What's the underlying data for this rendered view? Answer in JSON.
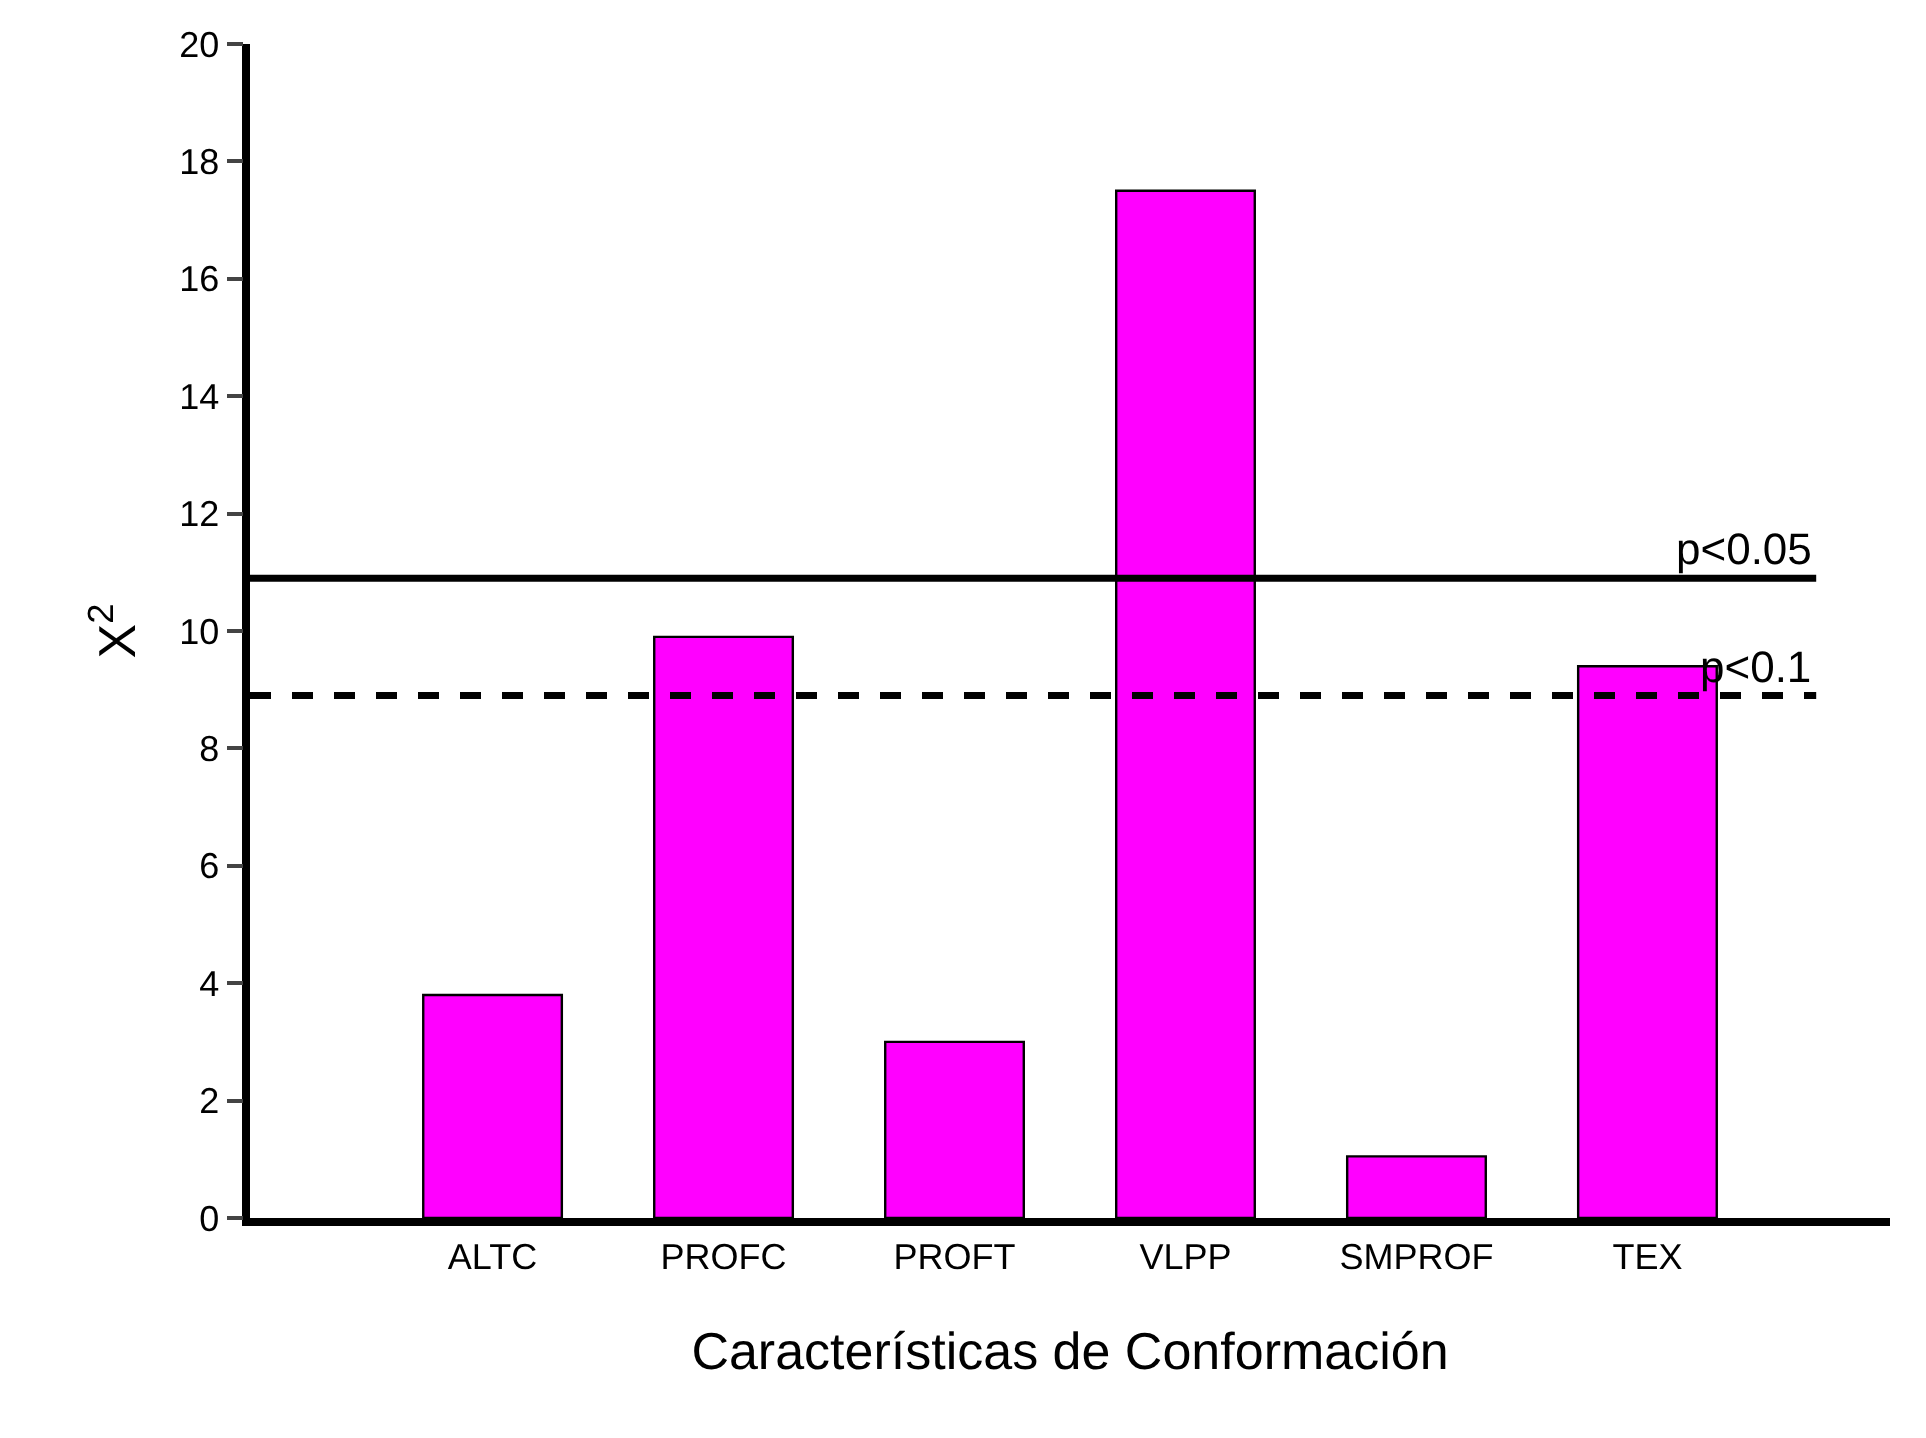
{
  "chart_data": {
    "type": "bar",
    "xlabel": "Características de Conformación",
    "ylabel": "X$^{2}$",
    "categories": [
      "ALTC",
      "PROFC",
      "PROFT",
      "VLPP",
      "SMPROF",
      "TEX"
    ],
    "values": [
      3.8,
      9.9,
      3.0,
      17.5,
      1.05,
      9.4
    ],
    "color": "#ff00ff",
    "ylim": [
      0,
      20
    ],
    "yticks": [
      0,
      2,
      4,
      6,
      8,
      10,
      12,
      14,
      16,
      18,
      20
    ],
    "legend": false,
    "ref_lines": [
      {
        "axis": "y",
        "value": 10.9,
        "label": "p<0.05",
        "color": "#000000",
        "line_style": "solid"
      },
      {
        "axis": "y",
        "value": 8.9,
        "label": "p<0.1",
        "color": "#000000",
        "line_style": "dashed"
      }
    ]
  }
}
